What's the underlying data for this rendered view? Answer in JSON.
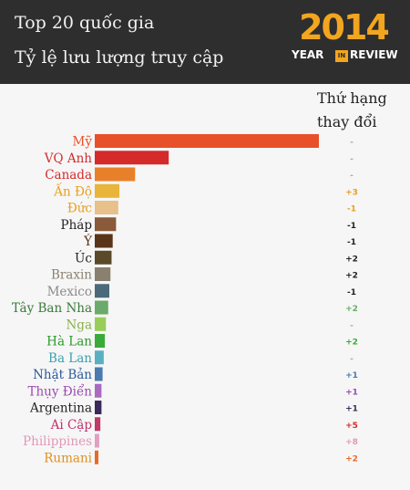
{
  "header": {
    "title_line1": "Top 20 quốc gia",
    "title_line2": "Tỷ lệ lưu lượng truy cập",
    "badge_year": "2014",
    "badge_left": "YEAR",
    "badge_mid": "IN",
    "badge_right": "REVIEW",
    "rank_header_line1": "Thứ hạng",
    "rank_header_line2": "thay đổi"
  },
  "chart_data": {
    "type": "bar",
    "orientation": "horizontal",
    "categories": [
      "Mỹ",
      "VQ Anh",
      "Canada",
      "Ấn Độ",
      "Đức",
      "Pháp",
      "Ý",
      "Úc",
      "Braxin",
      "Mexico",
      "Tây Ban Nha",
      "Nga",
      "Hà Lan",
      "Ba Lan",
      "Nhật Bản",
      "Thụy Điển",
      "Argentina",
      "Ai Cập",
      "Philippines",
      "Rumani"
    ],
    "values": [
      100,
      33,
      18,
      11,
      10.5,
      9.5,
      8,
      7.5,
      7,
      6.5,
      6,
      5,
      4.5,
      4,
      3.5,
      3,
      3,
      2.5,
      2,
      1.5
    ],
    "rank_change": [
      "-",
      "-",
      "-",
      "+3",
      "-1",
      "-1",
      "-1",
      "+2",
      "+2",
      "-1",
      "+2",
      "-",
      "+2",
      "-",
      "+1",
      "+1",
      "+1",
      "+5",
      "+8",
      "+2"
    ],
    "colors": [
      "#e8502a",
      "#d42a2a",
      "#e8802a",
      "#e8b43a",
      "#e8c08a",
      "#8a5a3a",
      "#5a3418",
      "#5a4a2a",
      "#8a8070",
      "#4a6a7a",
      "#6aaa6a",
      "#9acc5a",
      "#3aaa3a",
      "#5ab0c0",
      "#4a7ab0",
      "#aa6ac0",
      "#3a2a5a",
      "#c03a6a",
      "#e0a0c0",
      "#e86a2a"
    ],
    "label_colors": [
      "#e8502a",
      "#d42a2a",
      "#d42a2a",
      "#e8a020",
      "#e8a020",
      "#222222",
      "#5a3418",
      "#222222",
      "#8a8070",
      "#8a8a8a",
      "#3a7a3a",
      "#8ab04a",
      "#2a9a2a",
      "#3aa0b0",
      "#2a5a9a",
      "#9a4ab0",
      "#222222",
      "#c0306a",
      "#e098b8",
      "#e09020"
    ],
    "rank_colors": [
      "#aaaaaa",
      "#aaaaaa",
      "#aaaaaa",
      "#e8a020",
      "#e8a020",
      "#222222",
      "#222222",
      "#222222",
      "#222222",
      "#222222",
      "#6aaa6a",
      "#aaaaaa",
      "#3aaa3a",
      "#aaaaaa",
      "#4a7ab0",
      "#9a4ab0",
      "#3a2a5a",
      "#d42a2a",
      "#e098b8",
      "#e86a2a"
    ],
    "grid": false,
    "legend": "none"
  }
}
